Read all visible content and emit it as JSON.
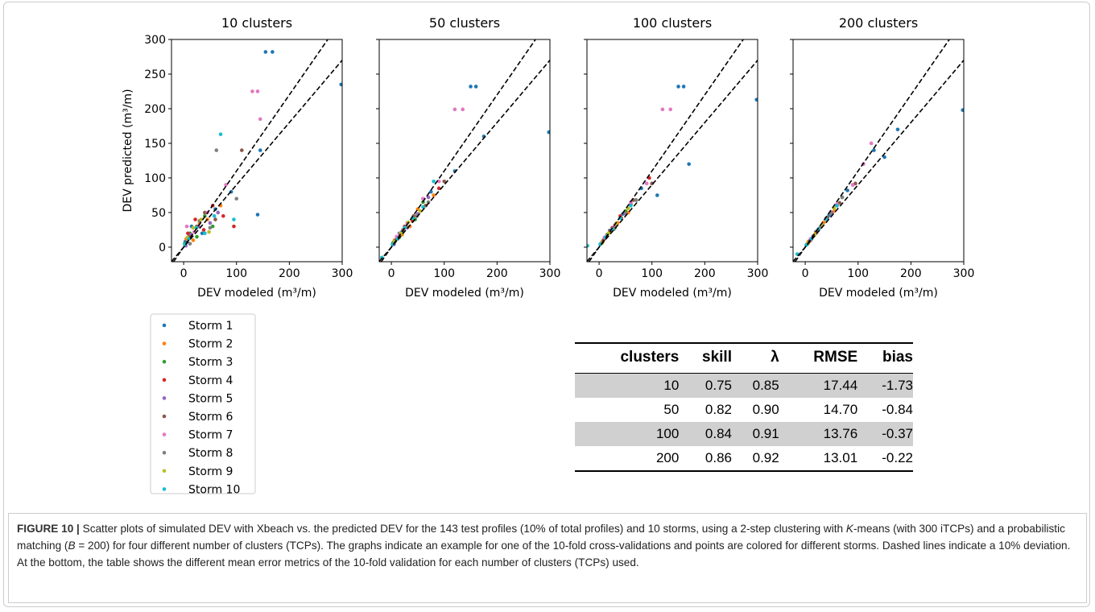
{
  "chart_data": [
    {
      "type": "scatter",
      "title": "10 clusters",
      "xlabel": "DEV modeled (m³/m)",
      "ylabel": "DEV predicted (m³/m)",
      "xlim": [
        -23,
        300
      ],
      "ylim": [
        -21,
        300
      ],
      "xticks": [
        0,
        100,
        200,
        300
      ],
      "yticks": [
        0,
        50,
        100,
        150,
        200,
        250,
        300
      ],
      "show_ytick_labels": true,
      "reference_slopes": [
        1.1,
        0.9
      ],
      "series": [
        {
          "x": [
            3,
            15,
            35,
            60,
            90,
            145,
            155,
            168,
            298,
            140
          ],
          "y": [
            8,
            30,
            20,
            55,
            80,
            140,
            282,
            282,
            235,
            47
          ]
        },
        {
          "x": [
            5,
            18,
            30,
            45,
            70
          ],
          "y": [
            12,
            10,
            35,
            40,
            60
          ]
        },
        {
          "x": [
            2,
            12,
            25,
            40,
            55
          ],
          "y": [
            5,
            20,
            15,
            45,
            30
          ]
        },
        {
          "x": [
            8,
            22,
            38,
            55,
            75,
            95
          ],
          "y": [
            20,
            40,
            25,
            60,
            45,
            30
          ]
        },
        {
          "x": [
            4,
            14,
            28,
            50,
            65
          ],
          "y": [
            2,
            18,
            30,
            35,
            50
          ]
        },
        {
          "x": [
            10,
            25,
            40,
            60,
            110
          ],
          "y": [
            15,
            30,
            50,
            40,
            140
          ]
        },
        {
          "x": [
            6,
            20,
            45,
            80,
            130,
            145,
            140
          ],
          "y": [
            30,
            22,
            50,
            90,
            225,
            185,
            225
          ]
        },
        {
          "x": [
            12,
            30,
            50,
            62,
            100
          ],
          "y": [
            5,
            38,
            28,
            140,
            70
          ]
        },
        {
          "x": [
            7,
            18,
            33,
            48
          ],
          "y": [
            14,
            28,
            40,
            22
          ]
        },
        {
          "x": [
            2,
            10,
            24,
            40,
            58,
            70,
            95
          ],
          "y": [
            4,
            12,
            28,
            20,
            45,
            163,
            40
          ]
        }
      ]
    },
    {
      "type": "scatter",
      "title": "50 clusters",
      "xlabel": "DEV modeled (m³/m)",
      "xlim": [
        -23,
        300
      ],
      "ylim": [
        -21,
        300
      ],
      "xticks": [
        0,
        100,
        200,
        300
      ],
      "yticks": [
        0,
        50,
        100,
        150,
        200,
        250,
        300
      ],
      "show_ytick_labels": false,
      "reference_slopes": [
        1.1,
        0.9
      ],
      "series": [
        {
          "x": [
            5,
            20,
            40,
            75,
            150,
            160,
            175,
            298,
            120
          ],
          "y": [
            8,
            22,
            42,
            80,
            232,
            232,
            160,
            166,
            110
          ]
        },
        {
          "x": [
            6,
            20,
            35,
            50,
            80
          ],
          "y": [
            10,
            18,
            30,
            55,
            75
          ]
        },
        {
          "x": [
            3,
            15,
            30,
            45,
            60
          ],
          "y": [
            6,
            14,
            35,
            40,
            65
          ]
        },
        {
          "x": [
            10,
            25,
            40,
            60,
            90
          ],
          "y": [
            15,
            30,
            38,
            70,
            85
          ]
        },
        {
          "x": [
            5,
            15,
            30,
            50,
            70
          ],
          "y": [
            4,
            20,
            28,
            48,
            72
          ]
        },
        {
          "x": [
            8,
            22,
            42,
            65,
            100
          ],
          "y": [
            10,
            25,
            45,
            60,
            95
          ]
        },
        {
          "x": [
            10,
            30,
            60,
            90,
            120,
            135
          ],
          "y": [
            15,
            35,
            70,
            95,
            199,
            199
          ]
        },
        {
          "x": [
            12,
            28,
            48,
            70
          ],
          "y": [
            12,
            30,
            45,
            65
          ]
        },
        {
          "x": [
            6,
            18,
            32,
            55
          ],
          "y": [
            8,
            20,
            36,
            52
          ]
        },
        {
          "x": [
            -18,
            2,
            12,
            25,
            40,
            60,
            80
          ],
          "y": [
            -15,
            4,
            12,
            28,
            42,
            58,
            95
          ]
        }
      ]
    },
    {
      "type": "scatter",
      "title": "100 clusters",
      "xlabel": "DEV modeled (m³/m)",
      "xlim": [
        -23,
        300
      ],
      "ylim": [
        -21,
        300
      ],
      "xticks": [
        0,
        100,
        200,
        300
      ],
      "yticks": [
        0,
        50,
        100,
        150,
        200,
        250,
        300
      ],
      "show_ytick_labels": false,
      "reference_slopes": [
        1.1,
        0.9
      ],
      "series": [
        {
          "x": [
            5,
            20,
            45,
            80,
            150,
            160,
            170,
            298,
            110
          ],
          "y": [
            6,
            24,
            48,
            85,
            232,
            232,
            120,
            213,
            75
          ]
        },
        {
          "x": [
            6,
            20,
            35,
            55
          ],
          "y": [
            8,
            22,
            35,
            50
          ]
        },
        {
          "x": [
            3,
            15,
            30,
            50,
            70
          ],
          "y": [
            5,
            18,
            28,
            52,
            68
          ]
        },
        {
          "x": [
            10,
            25,
            40,
            60,
            95
          ],
          "y": [
            12,
            28,
            45,
            62,
            100
          ]
        },
        {
          "x": [
            5,
            15,
            30,
            50
          ],
          "y": [
            6,
            16,
            32,
            48
          ]
        },
        {
          "x": [
            8,
            22,
            42,
            65,
            100
          ],
          "y": [
            10,
            24,
            42,
            68,
            92
          ]
        },
        {
          "x": [
            10,
            30,
            60,
            90,
            120,
            135
          ],
          "y": [
            14,
            32,
            65,
            92,
            199,
            199
          ]
        },
        {
          "x": [
            12,
            28,
            48,
            70
          ],
          "y": [
            14,
            26,
            50,
            68
          ]
        },
        {
          "x": [
            6,
            18,
            32,
            55
          ],
          "y": [
            6,
            20,
            34,
            56
          ]
        },
        {
          "x": [
            -22,
            2,
            12,
            25,
            40,
            60
          ],
          "y": [
            2,
            4,
            14,
            26,
            42,
            60
          ]
        }
      ]
    },
    {
      "type": "scatter",
      "title": "200 clusters",
      "xlabel": "DEV modeled (m³/m)",
      "xlim": [
        -23,
        300
      ],
      "ylim": [
        -21,
        300
      ],
      "xticks": [
        0,
        100,
        200,
        300
      ],
      "yticks": [
        0,
        50,
        100,
        150,
        200,
        250,
        300
      ],
      "show_ytick_labels": false,
      "reference_slopes": [
        1.1,
        0.9
      ],
      "series": [
        {
          "x": [
            5,
            20,
            45,
            80,
            110,
            130,
            150,
            175,
            298
          ],
          "y": [
            6,
            22,
            46,
            82,
            120,
            140,
            130,
            170,
            198
          ]
        },
        {
          "x": [
            6,
            20,
            35,
            55
          ],
          "y": [
            8,
            20,
            36,
            52
          ]
        },
        {
          "x": [
            3,
            15,
            30,
            50,
            70
          ],
          "y": [
            4,
            16,
            30,
            50,
            72
          ]
        },
        {
          "x": [
            10,
            25,
            40,
            60,
            90
          ],
          "y": [
            10,
            26,
            42,
            60,
            90
          ]
        },
        {
          "x": [
            5,
            15,
            30,
            50
          ],
          "y": [
            5,
            16,
            30,
            50
          ]
        },
        {
          "x": [
            8,
            22,
            42,
            65,
            95
          ],
          "y": [
            9,
            23,
            42,
            64,
            92
          ]
        },
        {
          "x": [
            10,
            30,
            60,
            90,
            110,
            125
          ],
          "y": [
            12,
            30,
            62,
            90,
            120,
            150
          ]
        },
        {
          "x": [
            12,
            28,
            48,
            70
          ],
          "y": [
            12,
            28,
            48,
            72
          ]
        },
        {
          "x": [
            6,
            18,
            32,
            55
          ],
          "y": [
            6,
            18,
            32,
            56
          ]
        },
        {
          "x": [
            -15,
            2,
            12,
            25,
            40,
            60
          ],
          "y": [
            -10,
            3,
            12,
            26,
            40,
            60
          ]
        }
      ]
    }
  ],
  "legend": {
    "entries": [
      {
        "name": "Storm 1",
        "color": "#1f77b4"
      },
      {
        "name": "Storm 2",
        "color": "#ff7f0e"
      },
      {
        "name": "Storm 3",
        "color": "#2ca02c"
      },
      {
        "name": "Storm 4",
        "color": "#d62728"
      },
      {
        "name": "Storm 5",
        "color": "#9467bd"
      },
      {
        "name": "Storm 6",
        "color": "#8c564b"
      },
      {
        "name": "Storm 7",
        "color": "#e377c2"
      },
      {
        "name": "Storm 8",
        "color": "#7f7f7f"
      },
      {
        "name": "Storm 9",
        "color": "#bcbd22"
      },
      {
        "name": "Storm 10",
        "color": "#17becf"
      }
    ]
  },
  "table": {
    "header": [
      "clusters",
      "skill",
      "λ",
      "RMSE",
      "bias"
    ],
    "rows": [
      [
        "10",
        "0.75",
        "0.85",
        "17.44",
        "-1.73"
      ],
      [
        "50",
        "0.82",
        "0.90",
        "14.70",
        "-0.84"
      ],
      [
        "100",
        "0.84",
        "0.91",
        "13.76",
        "-0.37"
      ],
      [
        "200",
        "0.86",
        "0.92",
        "13.01",
        "-0.22"
      ]
    ]
  },
  "caption": {
    "label": "FIGURE 10 |",
    "parts": [
      "Scatter plots of simulated DEV with Xbeach vs. the predicted DEV for the 143 test profiles (10% of total profiles) and 10 storms, using a 2-step clustering with ",
      "K",
      "-means (with 300 iTCPs) and a probabilistic matching (",
      "B",
      " = 200) for four different number of clusters (TCPs). The graphs indicate an example for one of the 10-fold cross-validations and points are colored for different storms. Dashed lines indicate a 10% deviation. At the bottom, the table shows the different mean error metrics of the 10-fold validation for each number of clusters (TCPs) used."
    ]
  }
}
